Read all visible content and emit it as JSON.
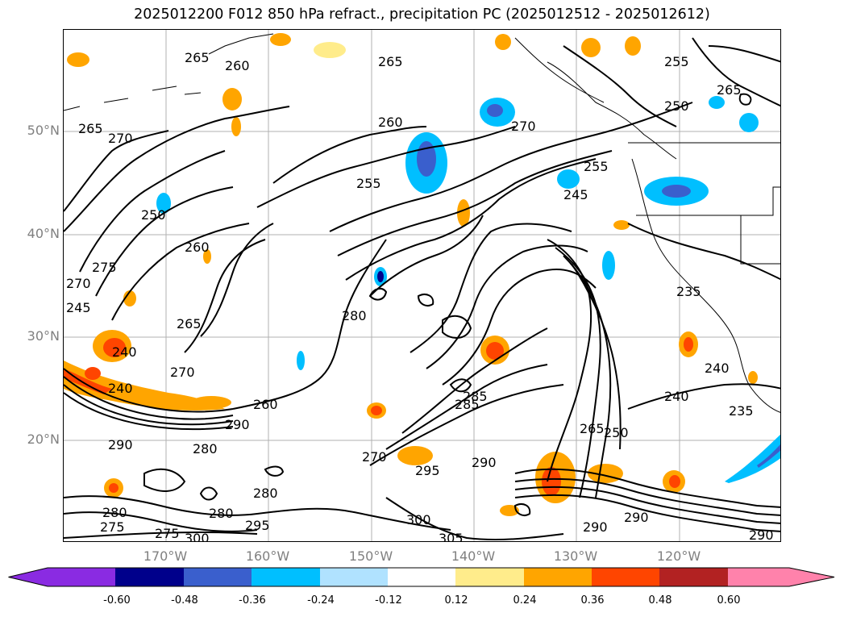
{
  "title": "2025012200 F012 850 hPa refract., precipitation PC (2025012512 - 2025012612)",
  "lat_labels": [
    "50°N",
    "40°N",
    "30°N",
    "20°N"
  ],
  "lon_labels": [
    "170°W",
    "160°W",
    "150°W",
    "140°W",
    "130°W",
    "120°W"
  ],
  "contour_labels": [
    "265",
    "260",
    "265",
    "255",
    "265",
    "270",
    "260",
    "255",
    "250",
    "270",
    "260",
    "255",
    "240",
    "245",
    "270",
    "275",
    "265",
    "265",
    "280",
    "240",
    "240",
    "250",
    "270",
    "290",
    "285",
    "280",
    "280",
    "275",
    "290",
    "270",
    "295",
    "290",
    "280",
    "280",
    "300",
    "305",
    "300",
    "290",
    "275",
    "295",
    "285",
    "265",
    "260",
    "250",
    "245",
    "235",
    "240",
    "235",
    "290",
    "290"
  ],
  "colorbar": {
    "tick_labels": [
      "-0.60",
      "-0.48",
      "-0.36",
      "-0.24",
      "-0.12",
      "0.12",
      "0.24",
      "0.36",
      "0.48",
      "0.60"
    ],
    "colors": [
      "#8a2be2",
      "#00008b",
      "#3a5fcd",
      "#00bfff",
      "#b0e2ff",
      "#ffffff",
      "#ffec8b",
      "#ffa500",
      "#ff4500",
      "#b22222",
      "#ff82ab"
    ]
  }
}
